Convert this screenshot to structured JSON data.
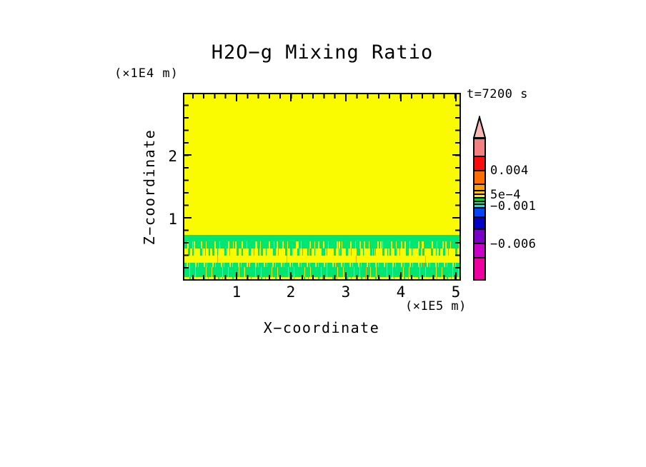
{
  "title": "H2O−g Mixing Ratio",
  "time_label": "t=7200 s",
  "axes": {
    "x": {
      "label": "X−coordinate",
      "unit": "(×1E5 m)",
      "tick_labels": [
        "1",
        "2",
        "3",
        "4",
        "5"
      ]
    },
    "z": {
      "label": "Z−coordinate",
      "unit": "(×1E4 m)",
      "tick_labels": [
        "2",
        "1"
      ]
    }
  },
  "colorbar": {
    "arrow_color": "#f8b6b6",
    "labels": [
      {
        "text": "0.004"
      },
      {
        "text": "5e−4"
      },
      {
        "text": "−0.001"
      },
      {
        "text": "−0.006"
      }
    ],
    "segments": [
      {
        "name": "salmon",
        "color": "#f28080",
        "h": 27
      },
      {
        "name": "red",
        "color": "#fb0d0d",
        "h": 22
      },
      {
        "name": "orange-red",
        "color": "#ff6c00",
        "h": 21
      },
      {
        "name": "orange",
        "color": "#ff9e00",
        "h": 11
      },
      {
        "name": "gold",
        "color": "#ffc800",
        "h": 7
      },
      {
        "name": "yellow",
        "color": "#fbec00",
        "h": 7
      },
      {
        "name": "green",
        "color": "#00d23c",
        "h": 7
      },
      {
        "name": "spring-green",
        "color": "#00e87e",
        "h": 6
      },
      {
        "name": "cyan",
        "color": "#00e8e8",
        "h": 7
      },
      {
        "name": "blue",
        "color": "#0345fd",
        "h": 15
      },
      {
        "name": "navy",
        "color": "#0000c8",
        "h": 19
      },
      {
        "name": "purple",
        "color": "#7a00c8",
        "h": 22
      },
      {
        "name": "magenta",
        "color": "#c800c8",
        "h": 22
      },
      {
        "name": "pink",
        "color": "#ee00a0",
        "h": 33
      }
    ]
  },
  "chart_data": {
    "type": "heatmap",
    "title": "H2O-g Mixing Ratio",
    "time_s": 7200,
    "xlabel": "X-coordinate",
    "x_unit_scale": "×1E5 m",
    "x_range": [
      0,
      5.1
    ],
    "x_ticks": [
      1,
      2,
      3,
      4,
      5
    ],
    "zlabel": "Z-coordinate",
    "z_unit_scale": "×1E4 m",
    "z_range": [
      0,
      3.0
    ],
    "z_ticks": [
      1,
      2
    ],
    "legend_position": "right",
    "colorbar_labeled_levels": [
      0.004,
      0.0005,
      -0.001,
      -0.006
    ],
    "field_colors": {
      "background_yellow": "#fbfb00",
      "band_green": "#00e673",
      "flecks_orange": "#ffa800"
    },
    "field_bands": [
      {
        "z_from": 0.73,
        "z_to": 3.0,
        "appearance": "uniform yellow",
        "approx_value": "0 to 5e-4"
      },
      {
        "z_from": 0.63,
        "z_to": 0.73,
        "appearance": "solid green band",
        "approx_value": "-0.001 to -5e-4"
      },
      {
        "z_from": 0.4,
        "z_to": 0.63,
        "appearance": "noisy green flames over yellow",
        "approx_value": "mixed"
      },
      {
        "z_from": 0.29,
        "z_to": 0.4,
        "appearance": "yellow band with sparse orange flecks",
        "approx_value": "0 to 5e-4"
      },
      {
        "z_from": 0.22,
        "z_to": 0.29,
        "appearance": "dense green/yellow speckle with orange flecks",
        "approx_value": "mixed"
      },
      {
        "z_from": 0.06,
        "z_to": 0.22,
        "appearance": "green band with yellow streaks",
        "approx_value": "-0.001 to -5e-4"
      },
      {
        "z_from": 0.0,
        "z_to": 0.06,
        "appearance": "yellow strip with green specks",
        "approx_value": "0 to 5e-4"
      }
    ]
  }
}
